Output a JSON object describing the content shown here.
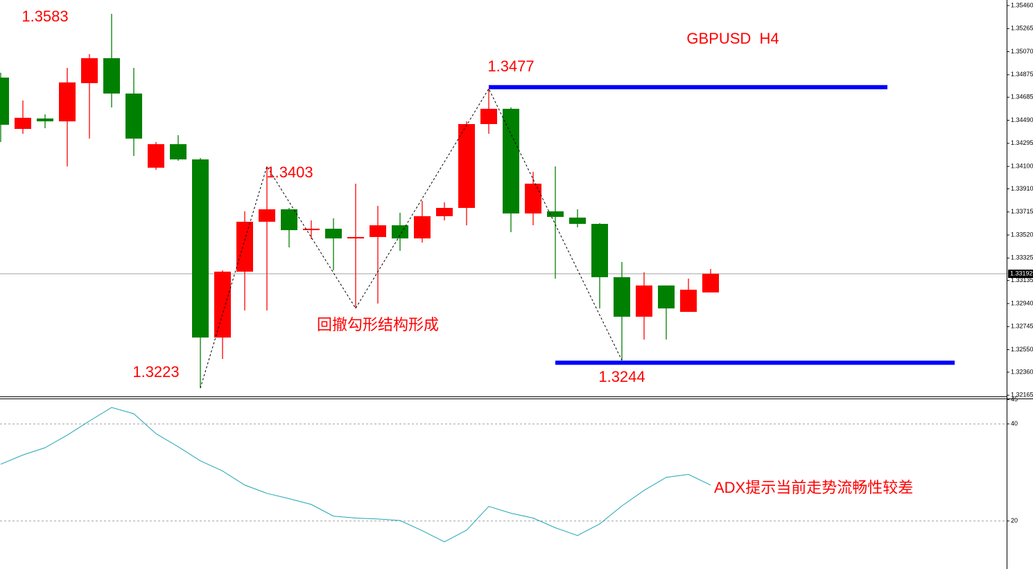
{
  "chart_data": [
    {
      "type": "candlestick",
      "title": "GBPUSD  H4",
      "up_color": "#ff0000",
      "down_color": "#008000",
      "open": [
        1.34851,
        1.34417,
        1.34505,
        1.34481,
        1.34804,
        1.35015,
        1.34716,
        1.34089,
        1.34288,
        1.34159,
        1.32653,
        1.3321,
        1.33632,
        1.33737,
        1.33561,
        1.33573,
        1.33491,
        1.33503,
        1.33602,
        1.33491,
        1.33679,
        1.33749,
        1.34458,
        1.34587,
        1.33702,
        1.3372,
        1.33667,
        1.33614,
        1.33163,
        1.32829,
        1.33093,
        1.3287,
        1.33034
      ],
      "high": [
        1.34892,
        1.34657,
        1.3454,
        1.34933,
        1.3505,
        1.3539,
        1.34933,
        1.34306,
        1.34364,
        1.34171,
        1.33221,
        1.3372,
        1.341,
        1.33749,
        1.33643,
        1.33661,
        1.33954,
        1.33766,
        1.33708,
        1.33808,
        1.33796,
        1.34481,
        1.34757,
        1.34599,
        1.34054,
        1.341,
        1.33737,
        1.3362,
        1.33292,
        1.33204,
        1.33093,
        1.33151,
        1.33233
      ],
      "low": [
        1.34306,
        1.34376,
        1.34423,
        1.341,
        1.34335,
        1.34599,
        1.34188,
        1.34071,
        1.34147,
        1.32225,
        1.32471,
        1.32882,
        1.32882,
        1.33415,
        1.33485,
        1.33221,
        1.32899,
        1.3294,
        1.33386,
        1.33456,
        1.33643,
        1.33602,
        1.34376,
        1.33544,
        1.33602,
        1.33151,
        1.33585,
        1.32899,
        1.3246,
        1.32636,
        1.32636,
        1.3287,
        1.33034
      ],
      "close": [
        1.34452,
        1.34511,
        1.34481,
        1.3481,
        1.35015,
        1.34716,
        1.34335,
        1.34288,
        1.34159,
        1.32653,
        1.3321,
        1.33632,
        1.33737,
        1.33561,
        1.33573,
        1.33491,
        1.33503,
        1.33602,
        1.33491,
        1.33679,
        1.33749,
        1.34458,
        1.34587,
        1.33702,
        1.33954,
        1.33673,
        1.33614,
        1.33163,
        1.32829,
        1.33093,
        1.32899,
        1.33057,
        1.33192
      ],
      "ylim": [
        1.32149,
        1.35507
      ],
      "yticks": [
        {
          "value": 1.3546,
          "label": "1.35460"
        },
        1.35265,
        {
          "value": 1.3507,
          "label": "1.35070"
        },
        1.34875,
        1.34685,
        {
          "value": 1.3449,
          "label": "1.34490"
        },
        1.34295,
        {
          "value": 1.341,
          "label": "1.34100"
        },
        {
          "value": 1.3391,
          "label": "1.33910"
        },
        1.33715,
        {
          "value": 1.3352,
          "label": "1.33520"
        },
        1.33325,
        1.33135,
        {
          "value": 1.3294,
          "label": "1.32940"
        },
        1.32745,
        {
          "value": 1.3255,
          "label": "1.32550"
        },
        {
          "value": 1.3236,
          "label": "1.32360"
        },
        1.32165
      ],
      "current_price": 1.33192,
      "levels": {
        "color": "#0000ff",
        "values": [
          1.3477,
          1.3244
        ]
      },
      "zigzag": {
        "x": [
          9,
          12,
          16,
          22,
          28
        ],
        "values": [
          1.32225,
          1.341,
          1.329,
          1.34757,
          1.3246
        ]
      },
      "annotations": [
        "1.3583",
        "1.3403",
        "1.3223",
        "1.3477",
        "1.3244",
        "回撤勾形结构形成"
      ]
    },
    {
      "type": "line",
      "color": "#1fa5b5",
      "values": [
        31.7,
        33.6,
        35.1,
        37.7,
        40.6,
        43.4,
        42.1,
        38,
        35.3,
        32.4,
        30.3,
        27.4,
        25.7,
        24.6,
        23.4,
        21,
        20.6,
        20.4,
        20.1,
        18,
        15.7,
        18.1,
        23,
        21.6,
        20.6,
        18.6,
        17,
        19.4,
        23.1,
        26.3,
        29,
        29.6,
        27.4
      ],
      "ylim": [
        10.1,
        45.1
      ],
      "yticks": [
        20,
        40,
        45
      ],
      "grid": true,
      "annotations": [
        "ADX提示当前走势流畅性较差"
      ]
    }
  ]
}
